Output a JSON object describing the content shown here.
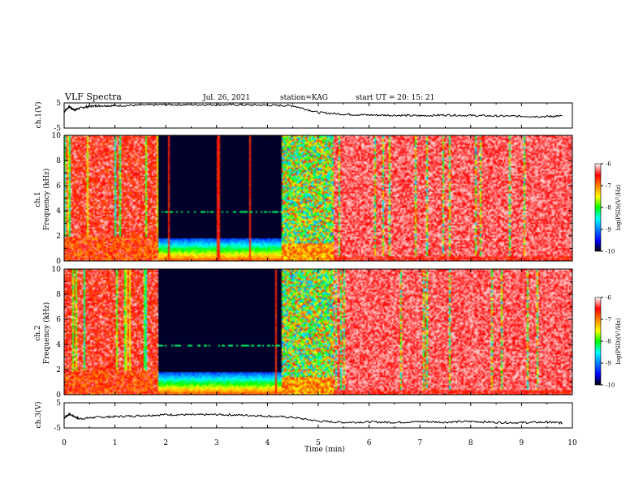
{
  "header": {
    "title": "VLF Spectra",
    "date": "Jul. 26, 2021",
    "station": "station=KAG",
    "start": "start UT =  20: 15: 21"
  },
  "chart_data": [
    {
      "type": "line",
      "panel": "ch1-waveform",
      "ylabel": "ch.1(V)",
      "xlim": [
        0,
        10
      ],
      "ylim": [
        -5,
        5
      ],
      "yticks": [
        5,
        -5
      ],
      "x": [
        0,
        0.1,
        0.2,
        0.3,
        0.5,
        0.7,
        1.0,
        1.5,
        2.0,
        2.5,
        3.0,
        3.5,
        4.0,
        4.5,
        5.0,
        5.5,
        6.0,
        6.5,
        7.0,
        7.5,
        8.0,
        8.5,
        9.0,
        9.5,
        9.8
      ],
      "y": [
        1.5,
        3.6,
        2.2,
        2.9,
        3.7,
        3.9,
        3.9,
        4.1,
        4.3,
        4.3,
        4.3,
        4.2,
        4.1,
        3.9,
        1.2,
        0.5,
        0.2,
        0.1,
        -0.1,
        0.2,
        0.0,
        -0.2,
        -0.3,
        -0.4,
        -0.2
      ]
    },
    {
      "type": "heatmap",
      "panel": "ch1-spectrogram",
      "ylabel": "ch.1\nFrequency  (kHz)",
      "xlim": [
        0,
        10
      ],
      "ylim": [
        0,
        10
      ],
      "yticks": [
        0,
        2,
        4,
        6,
        8,
        10
      ],
      "colorbar": {
        "label": "log(PSD)(V²/Hz)",
        "range": [
          -10,
          -6
        ],
        "ticks": [
          "-6",
          "-7",
          "-8",
          "-9",
          "-10"
        ]
      }
    },
    {
      "type": "heatmap",
      "panel": "ch2-spectrogram",
      "ylabel": "ch.2\nFrequency  (kHz)",
      "xlim": [
        0,
        10
      ],
      "ylim": [
        0,
        10
      ],
      "yticks": [
        0,
        2,
        4,
        6,
        8,
        10
      ],
      "colorbar": {
        "label": "log(PSD)(V²/Hz)",
        "range": [
          -10,
          -6
        ],
        "ticks": [
          "-6",
          "-7",
          "-8",
          "-9",
          "-10"
        ]
      }
    },
    {
      "type": "line",
      "panel": "ch3-waveform",
      "ylabel": "ch.3(V)",
      "xlabel": "Time  (min)",
      "xlim": [
        0,
        10
      ],
      "ylim": [
        -5,
        5
      ],
      "yticks": [
        5,
        -5
      ],
      "xticks": [
        0,
        1,
        2,
        3,
        4,
        5,
        6,
        7,
        8,
        9,
        10
      ],
      "x": [
        0,
        0.1,
        0.3,
        0.6,
        1.0,
        1.5,
        2.0,
        2.5,
        3.0,
        3.5,
        4.0,
        4.5,
        5.0,
        5.5,
        6.0,
        6.5,
        7.0,
        7.5,
        8.0,
        8.5,
        9.0,
        9.5,
        9.8
      ],
      "y": [
        -1.0,
        0.5,
        -1.4,
        -0.8,
        -0.5,
        -0.1,
        0.3,
        0.2,
        0.3,
        0.1,
        -0.3,
        -0.8,
        -2.3,
        -2.8,
        -2.6,
        -2.8,
        -2.5,
        -2.7,
        -2.4,
        -2.8,
        -2.9,
        -2.7,
        -3.0
      ]
    }
  ]
}
